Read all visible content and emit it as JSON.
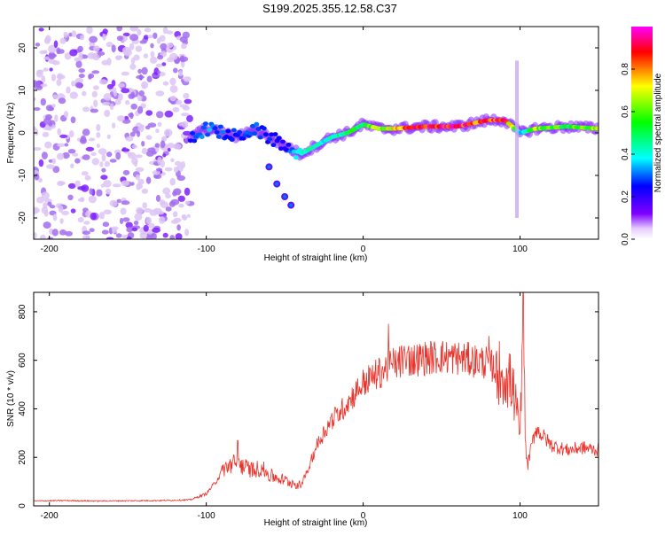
{
  "title": "S199.2025.355.12.58.C37",
  "chart_data": [
    {
      "type": "heatmap",
      "title": "S199.2025.355.12.58.C37",
      "xlabel": "Height of straight line (km)",
      "ylabel": "Frequency (Hz)",
      "xlim": [
        -210,
        150
      ],
      "ylim": [
        -25,
        25
      ],
      "xticks": [
        -200,
        -100,
        0,
        100
      ],
      "yticks": [
        -20,
        -10,
        0,
        10,
        20
      ],
      "colorbar": {
        "label": "Normalized spectral amplitude",
        "range": [
          0,
          1
        ],
        "ticks": [
          0.0,
          0.2,
          0.4,
          0.6,
          0.8
        ],
        "tick_labels": [
          "0.0",
          "0.2",
          "0.4",
          "0.6",
          "0.8"
        ],
        "colormap": [
          "#ffffff",
          "#7f00ff",
          "#0000ff",
          "#00ffff",
          "#00ff00",
          "#ffff00",
          "#ff0000",
          "#ff00ff"
        ]
      },
      "ridge": {
        "description": "frequency of strongest spectral line vs height",
        "x": [
          -110,
          -100,
          -90,
          -80,
          -70,
          -60,
          -50,
          -40,
          -30,
          -20,
          -10,
          0,
          10,
          20,
          40,
          60,
          80,
          90,
          100,
          110,
          130,
          150
        ],
        "y": [
          -1,
          1,
          0,
          -1,
          1,
          -1,
          -3,
          -5,
          -3,
          -1,
          0,
          2,
          1,
          1,
          1.5,
          1.5,
          3,
          3,
          0,
          1,
          1.5,
          1
        ],
        "amplitude": [
          0.3,
          0.4,
          0.35,
          0.3,
          0.35,
          0.3,
          0.3,
          0.45,
          0.5,
          0.5,
          0.55,
          0.6,
          0.7,
          0.8,
          0.95,
          0.95,
          0.9,
          0.95,
          0.4,
          0.7,
          0.6,
          0.7
        ]
      },
      "noise_region": {
        "x_range": [
          -210,
          -110
        ],
        "amplitude": 0.15
      },
      "branch": {
        "x": [
          -60,
          -55,
          -50,
          -46
        ],
        "y": [
          -8,
          -12,
          -15,
          -17
        ]
      },
      "vertical_streak": {
        "x": 98,
        "y_range": [
          -20,
          17
        ]
      }
    },
    {
      "type": "line",
      "xlabel": "Height of straight line (km)",
      "ylabel": "SNR (10 * v/v)",
      "xlim": [
        -210,
        150
      ],
      "ylim": [
        0,
        880
      ],
      "xticks": [
        -200,
        -100,
        0,
        100
      ],
      "yticks": [
        0,
        200,
        400,
        600,
        800
      ],
      "color": "#e8322a",
      "series": [
        {
          "name": "SNR",
          "x": [
            -210,
            -190,
            -170,
            -150,
            -130,
            -110,
            -100,
            -95,
            -90,
            -85,
            -80,
            -75,
            -70,
            -65,
            -60,
            -55,
            -50,
            -45,
            -40,
            -35,
            -30,
            -25,
            -20,
            -15,
            -10,
            -5,
            0,
            5,
            10,
            15,
            20,
            25,
            30,
            40,
            50,
            60,
            70,
            80,
            85,
            90,
            95,
            100,
            102,
            104,
            110,
            120,
            130,
            140,
            150
          ],
          "y": [
            20,
            22,
            20,
            21,
            22,
            25,
            50,
            90,
            140,
            160,
            170,
            150,
            140,
            150,
            120,
            110,
            100,
            90,
            80,
            150,
            240,
            300,
            350,
            380,
            420,
            460,
            500,
            520,
            540,
            560,
            580,
            590,
            600,
            610,
            615,
            610,
            600,
            590,
            560,
            540,
            500,
            300,
            700,
            150,
            320,
            250,
            230,
            240,
            230
          ],
          "spikes": [
            {
              "x": -80,
              "y": 270
            },
            {
              "x": 16,
              "y": 750
            },
            {
              "x": 80,
              "y": 700
            },
            {
              "x": 102,
              "y": 880
            }
          ]
        }
      ]
    }
  ]
}
